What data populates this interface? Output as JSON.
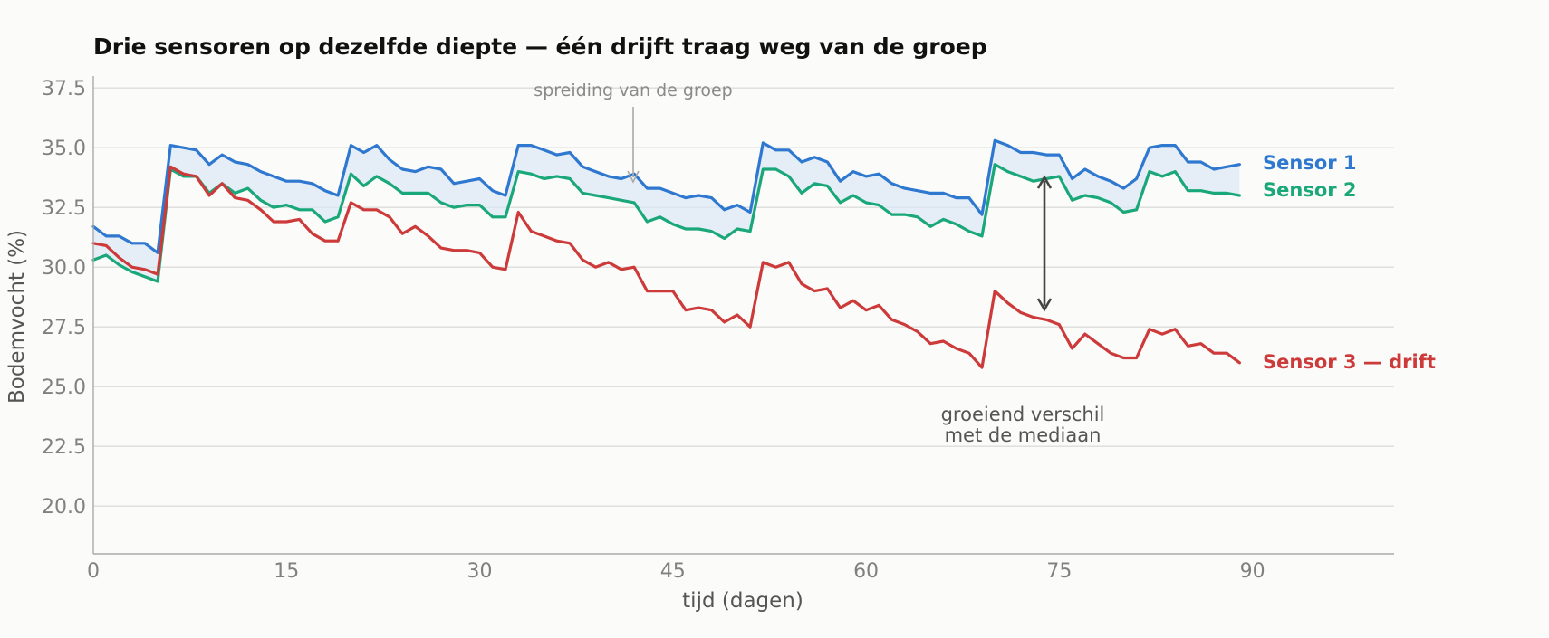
{
  "chart_data": {
    "type": "line",
    "title": "Drie sensoren op dezelfde diepte — één drijft traag weg van de groep",
    "xlabel": "tijd (dagen)",
    "ylabel": "Bodemvocht (%)",
    "xlim": [
      0,
      101
    ],
    "ylim": [
      18.0,
      38.0
    ],
    "x_ticks": [
      "0",
      "15",
      "30",
      "45",
      "60",
      "75",
      "90"
    ],
    "y_ticks": [
      "20.0",
      "22.5",
      "25.0",
      "27.5",
      "30.0",
      "32.5",
      "35.0",
      "37.5"
    ],
    "grid": "horizontal",
    "x": [
      0,
      1,
      2,
      3,
      4,
      5,
      6,
      7,
      8,
      9,
      10,
      11,
      12,
      13,
      14,
      15,
      16,
      17,
      18,
      19,
      20,
      21,
      22,
      23,
      24,
      25,
      26,
      27,
      28,
      29,
      30,
      31,
      32,
      33,
      34,
      35,
      36,
      37,
      38,
      39,
      40,
      41,
      42,
      43,
      44,
      45,
      46,
      47,
      48,
      49,
      50,
      51,
      52,
      53,
      54,
      55,
      56,
      57,
      58,
      59,
      60,
      61,
      62,
      63,
      64,
      65,
      66,
      67,
      68,
      69,
      70,
      71,
      72,
      73,
      74,
      75,
      76,
      77,
      78,
      79,
      80,
      81,
      82,
      83,
      84,
      85,
      86,
      87,
      88,
      89
    ],
    "series": [
      {
        "name": "Sensor 1",
        "color": "#2f78d0",
        "values": [
          31.7,
          31.3,
          31.3,
          31.0,
          31.0,
          30.6,
          35.1,
          35.0,
          34.9,
          34.3,
          34.7,
          34.4,
          34.3,
          34.0,
          33.8,
          33.6,
          33.6,
          33.5,
          33.2,
          33.0,
          35.1,
          34.8,
          35.1,
          34.5,
          34.1,
          34.0,
          34.2,
          34.1,
          33.5,
          33.6,
          33.7,
          33.2,
          33.0,
          35.1,
          35.1,
          34.9,
          34.7,
          34.8,
          34.2,
          34.0,
          33.8,
          33.7,
          33.9,
          33.3,
          33.3,
          33.1,
          32.9,
          33.0,
          32.9,
          32.4,
          32.6,
          32.3,
          35.2,
          34.9,
          34.9,
          34.4,
          34.6,
          34.4,
          33.6,
          34.0,
          33.8,
          33.9,
          33.5,
          33.3,
          33.2,
          33.1,
          33.1,
          32.9,
          32.9,
          32.2,
          35.3,
          35.1,
          34.8,
          34.8,
          34.7,
          34.7,
          33.7,
          34.1,
          33.8,
          33.6,
          33.3,
          33.7,
          35.0,
          35.1,
          35.1,
          34.4,
          34.4,
          34.1,
          34.2,
          34.3
        ]
      },
      {
        "name": "Sensor 2",
        "color": "#1aa779",
        "values": [
          30.3,
          30.5,
          30.1,
          29.8,
          29.6,
          29.4,
          34.1,
          33.8,
          33.8,
          33.1,
          33.5,
          33.1,
          33.3,
          32.8,
          32.5,
          32.6,
          32.4,
          32.4,
          31.9,
          32.1,
          33.9,
          33.4,
          33.8,
          33.5,
          33.1,
          33.1,
          33.1,
          32.7,
          32.5,
          32.6,
          32.6,
          32.1,
          32.1,
          34.0,
          33.9,
          33.7,
          33.8,
          33.7,
          33.1,
          33.0,
          32.9,
          32.8,
          32.7,
          31.9,
          32.1,
          31.8,
          31.6,
          31.6,
          31.5,
          31.2,
          31.6,
          31.5,
          34.1,
          34.1,
          33.8,
          33.1,
          33.5,
          33.4,
          32.7,
          33.0,
          32.7,
          32.6,
          32.2,
          32.2,
          32.1,
          31.7,
          32.0,
          31.8,
          31.5,
          31.3,
          34.3,
          34.0,
          33.8,
          33.6,
          33.7,
          33.8,
          32.8,
          33.0,
          32.9,
          32.7,
          32.3,
          32.4,
          34.0,
          33.8,
          34.0,
          33.2,
          33.2,
          33.1,
          33.1,
          33.0
        ]
      },
      {
        "name": "Sensor 3 — drift",
        "color": "#cc3a3a",
        "values": [
          31.0,
          30.9,
          30.4,
          30.0,
          29.9,
          29.7,
          34.2,
          33.9,
          33.8,
          33.0,
          33.5,
          32.9,
          32.8,
          32.4,
          31.9,
          31.9,
          32.0,
          31.4,
          31.1,
          31.1,
          32.7,
          32.4,
          32.4,
          32.1,
          31.4,
          31.7,
          31.3,
          30.8,
          30.7,
          30.7,
          30.6,
          30.0,
          29.9,
          32.3,
          31.5,
          31.3,
          31.1,
          31.0,
          30.3,
          30.0,
          30.2,
          29.9,
          30.0,
          29.0,
          29.0,
          29.0,
          28.2,
          28.3,
          28.2,
          27.7,
          28.0,
          27.5,
          30.2,
          30.0,
          30.2,
          29.3,
          29.0,
          29.1,
          28.3,
          28.6,
          28.2,
          28.4,
          27.8,
          27.6,
          27.3,
          26.8,
          26.9,
          26.6,
          26.4,
          25.8,
          29.0,
          28.5,
          28.1,
          27.9,
          27.8,
          27.6,
          26.6,
          27.2,
          26.8,
          26.4,
          26.2,
          26.2,
          27.4,
          27.2,
          27.4,
          26.7,
          26.8,
          26.4,
          26.4,
          26.0
        ]
      }
    ],
    "annotations": {
      "band": "spreiding van de groep",
      "gap_line1": "groeiend verschil",
      "gap_line2": "met de mediaan"
    }
  }
}
